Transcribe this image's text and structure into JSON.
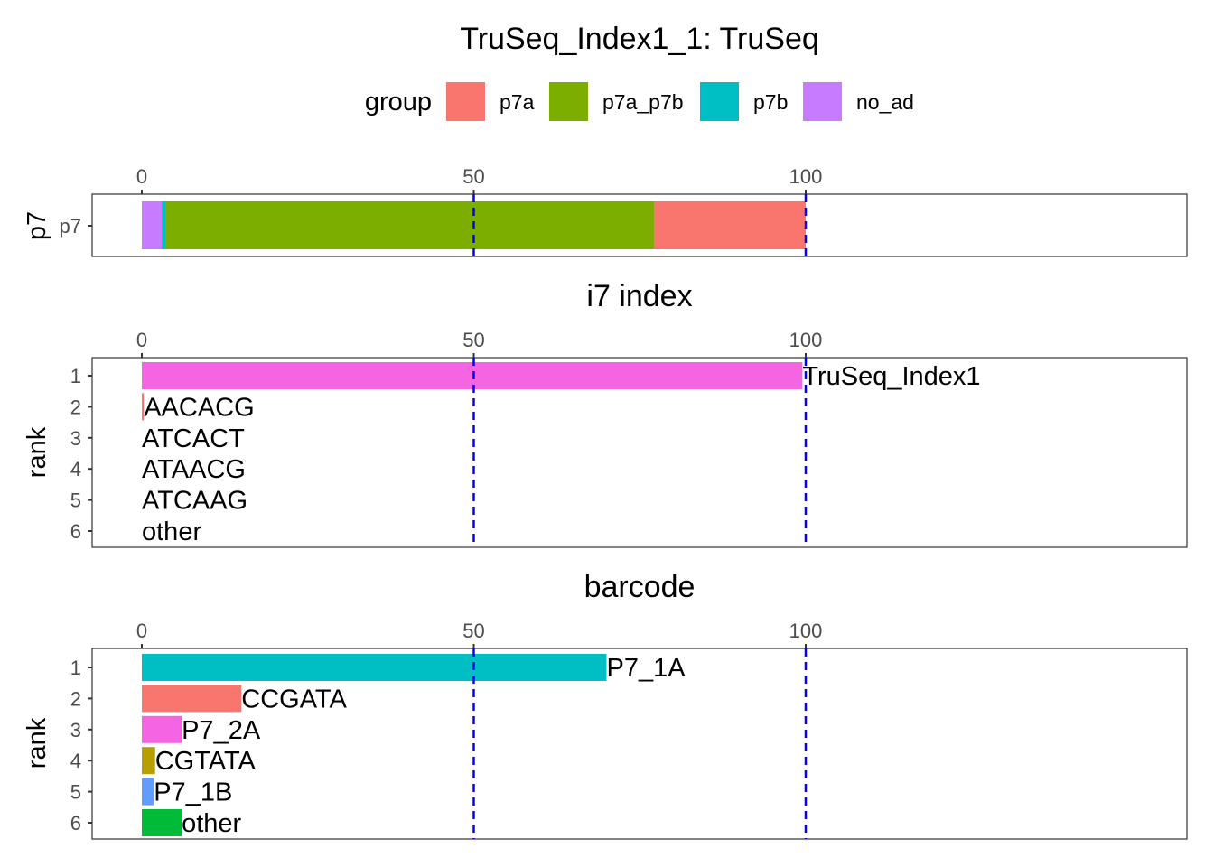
{
  "title": "TruSeq_Index1_1: TruSeq",
  "legend": {
    "title": "group",
    "items": [
      {
        "label": "p7a",
        "color": "#F8766D"
      },
      {
        "label": "p7a_p7b",
        "color": "#7CAE00"
      },
      {
        "label": "p7b",
        "color": "#00BFC4"
      },
      {
        "label": "no_ad",
        "color": "#C77CFF"
      }
    ]
  },
  "reference_line_color": "#0000FF",
  "chart_data": [
    {
      "type": "bar",
      "orientation": "horizontal",
      "stacked": true,
      "title": "",
      "ylabel": "p7",
      "categories": [
        "p7"
      ],
      "xlim": [
        0,
        160
      ],
      "xticks": [
        0,
        50,
        100
      ],
      "reference_lines": [
        50,
        100
      ],
      "segments": [
        {
          "group": "no_ad",
          "value": 3.0
        },
        {
          "group": "p7b",
          "value": 0.6
        },
        {
          "group": "p7a_p7b",
          "value": 73.6
        },
        {
          "group": "p7a",
          "value": 22.8
        }
      ]
    },
    {
      "type": "bar",
      "orientation": "horizontal",
      "title": "i7 index",
      "ylabel": "rank",
      "xlim": [
        0,
        160
      ],
      "xticks": [
        0,
        50,
        100
      ],
      "reference_lines": [
        50,
        100
      ],
      "ranks": [
        "1",
        "2",
        "3",
        "4",
        "5",
        "6"
      ],
      "bars": [
        {
          "rank": "1",
          "label": "TruSeq_Index1",
          "value": 99.5,
          "color": "#F564E3"
        },
        {
          "rank": "2",
          "label": "AACACG",
          "value": 0.3,
          "color": "#F8766D"
        },
        {
          "rank": "3",
          "label": "ATCACT",
          "value": 0.0,
          "color": "#B79F00"
        },
        {
          "rank": "4",
          "label": "ATAACG",
          "value": 0.0,
          "color": "#00BA38"
        },
        {
          "rank": "5",
          "label": "ATCAAG",
          "value": 0.0,
          "color": "#619CFF"
        },
        {
          "rank": "6",
          "label": "other",
          "value": 0.0,
          "color": "#00BFC4"
        }
      ]
    },
    {
      "type": "bar",
      "orientation": "horizontal",
      "title": "barcode",
      "ylabel": "rank",
      "xlim": [
        0,
        160
      ],
      "xticks": [
        0,
        50,
        100
      ],
      "reference_lines": [
        50,
        100
      ],
      "ranks": [
        "1",
        "2",
        "3",
        "4",
        "5",
        "6"
      ],
      "bars": [
        {
          "rank": "1",
          "label": "P7_1A",
          "value": 70.0,
          "color": "#00BFC4"
        },
        {
          "rank": "2",
          "label": "CCGATA",
          "value": 15.0,
          "color": "#F8766D"
        },
        {
          "rank": "3",
          "label": "P7_2A",
          "value": 6.0,
          "color": "#F564E3"
        },
        {
          "rank": "4",
          "label": "CGTATA",
          "value": 2.0,
          "color": "#B79F00"
        },
        {
          "rank": "5",
          "label": "P7_1B",
          "value": 1.8,
          "color": "#619CFF"
        },
        {
          "rank": "6",
          "label": "other",
          "value": 6.0,
          "color": "#00BA38"
        }
      ]
    }
  ]
}
